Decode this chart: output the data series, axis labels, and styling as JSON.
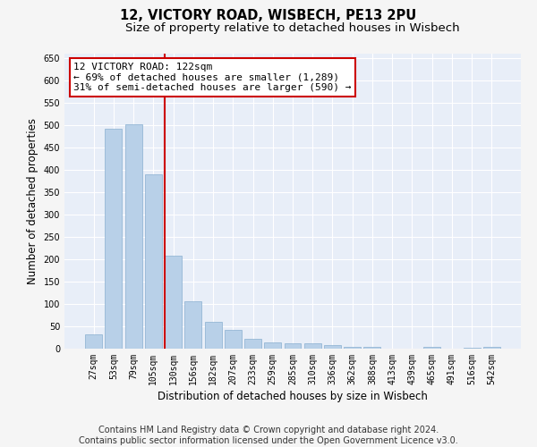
{
  "title": "12, VICTORY ROAD, WISBECH, PE13 2PU",
  "subtitle": "Size of property relative to detached houses in Wisbech",
  "xlabel": "Distribution of detached houses by size in Wisbech",
  "ylabel": "Number of detached properties",
  "categories": [
    "27sqm",
    "53sqm",
    "79sqm",
    "105sqm",
    "130sqm",
    "156sqm",
    "182sqm",
    "207sqm",
    "233sqm",
    "259sqm",
    "285sqm",
    "310sqm",
    "336sqm",
    "362sqm",
    "388sqm",
    "413sqm",
    "439sqm",
    "465sqm",
    "491sqm",
    "516sqm",
    "542sqm"
  ],
  "values": [
    33,
    492,
    503,
    390,
    208,
    107,
    60,
    42,
    22,
    15,
    13,
    13,
    8,
    5,
    4,
    0,
    0,
    5,
    0,
    2,
    5
  ],
  "bar_color": "#b8d0e8",
  "bar_edge_color": "#8ab0d0",
  "vline_color": "#cc0000",
  "vline_pos": 3.55,
  "annotation_text": "12 VICTORY ROAD: 122sqm\n← 69% of detached houses are smaller (1,289)\n31% of semi-detached houses are larger (590) →",
  "annotation_box_color": "#ffffff",
  "annotation_box_edge_color": "#cc0000",
  "ylim": [
    0,
    660
  ],
  "yticks": [
    0,
    50,
    100,
    150,
    200,
    250,
    300,
    350,
    400,
    450,
    500,
    550,
    600,
    650
  ],
  "plot_bg_color": "#e8eef8",
  "fig_bg_color": "#f5f5f5",
  "grid_color": "#ffffff",
  "footer_text": "Contains HM Land Registry data © Crown copyright and database right 2024.\nContains public sector information licensed under the Open Government Licence v3.0.",
  "title_fontsize": 10.5,
  "subtitle_fontsize": 9.5,
  "xlabel_fontsize": 8.5,
  "ylabel_fontsize": 8.5,
  "tick_fontsize": 7,
  "annotation_fontsize": 8,
  "footer_fontsize": 7
}
